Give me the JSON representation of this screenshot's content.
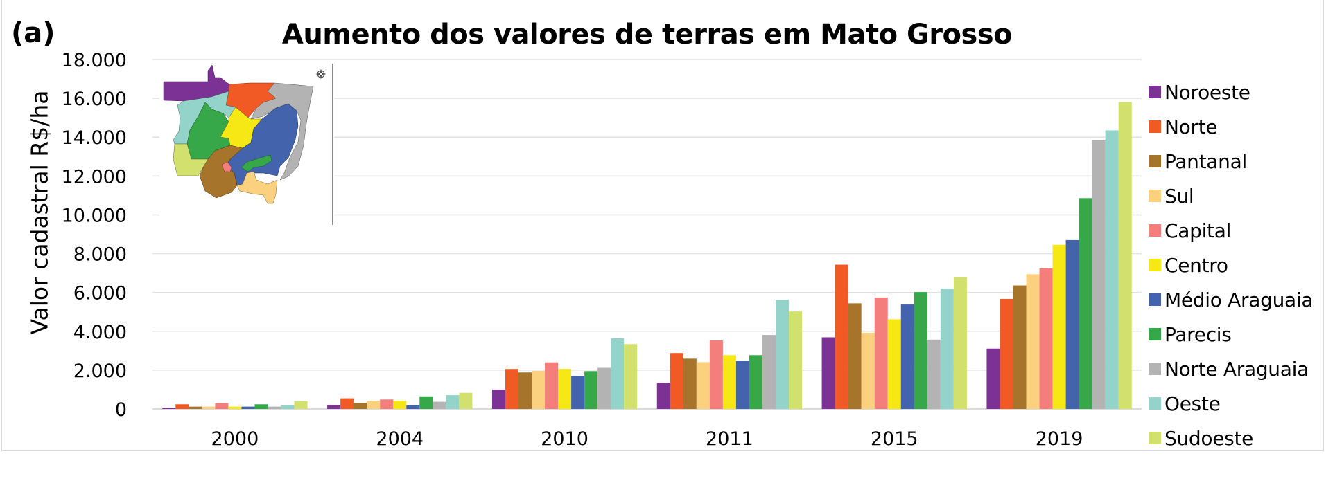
{
  "panel_label": "(a)",
  "chart_data": {
    "type": "bar",
    "title": "Aumento dos valores de terras em Mato Grosso",
    "xlabel": "",
    "ylabel": "Valor cadastral R$/ha",
    "ylim": [
      0,
      18000
    ],
    "yticks": [
      0,
      2000,
      4000,
      6000,
      8000,
      10000,
      12000,
      14000,
      16000,
      18000
    ],
    "ytick_labels": [
      "0",
      "2.000",
      "4.000",
      "6.000",
      "8.000",
      "10.000",
      "12.000",
      "14.000",
      "16.000",
      "18.000"
    ],
    "grid": true,
    "legend_position": "right",
    "categories": [
      "2000",
      "2004",
      "2010",
      "2011",
      "2015",
      "2019"
    ],
    "series": [
      {
        "name": "Noroeste",
        "color": "#7b3294",
        "values": [
          60,
          200,
          1000,
          1350,
          3690,
          3110
        ]
      },
      {
        "name": "Norte",
        "color": "#f15a24",
        "values": [
          240,
          550,
          2060,
          2880,
          7430,
          5670
        ]
      },
      {
        "name": "Pantanal",
        "color": "#a6742b",
        "values": [
          120,
          310,
          1880,
          2590,
          5440,
          6360
        ]
      },
      {
        "name": "Sul",
        "color": "#fbd17f",
        "values": [
          120,
          420,
          1960,
          2410,
          3920,
          6940
        ]
      },
      {
        "name": "Capital",
        "color": "#f47e7c",
        "values": [
          300,
          490,
          2400,
          3530,
          5740,
          7240
        ]
      },
      {
        "name": "Centro",
        "color": "#f5e814",
        "values": [
          120,
          420,
          2060,
          2770,
          4620,
          8460
        ]
      },
      {
        "name": "Médio Araguaia",
        "color": "#4363ad",
        "values": [
          120,
          190,
          1710,
          2480,
          5380,
          8700
        ]
      },
      {
        "name": "Parecis",
        "color": "#36a84a",
        "values": [
          240,
          650,
          1950,
          2770,
          6020,
          10860
        ]
      },
      {
        "name": "Norte Araguaia",
        "color": "#b3b3b3",
        "values": [
          120,
          370,
          2120,
          3810,
          3570,
          13830
        ]
      },
      {
        "name": "Oeste",
        "color": "#93d3c9",
        "values": [
          190,
          710,
          3640,
          5620,
          6200,
          14350
        ]
      },
      {
        "name": "Sudoeste",
        "color": "#d2e06e",
        "values": [
          400,
          830,
          3340,
          5020,
          6790,
          15810
        ]
      }
    ]
  },
  "map_inset": {
    "description": "Mapa de Mato Grosso colorido por região",
    "compass_icon": "compass-rose-icon"
  }
}
